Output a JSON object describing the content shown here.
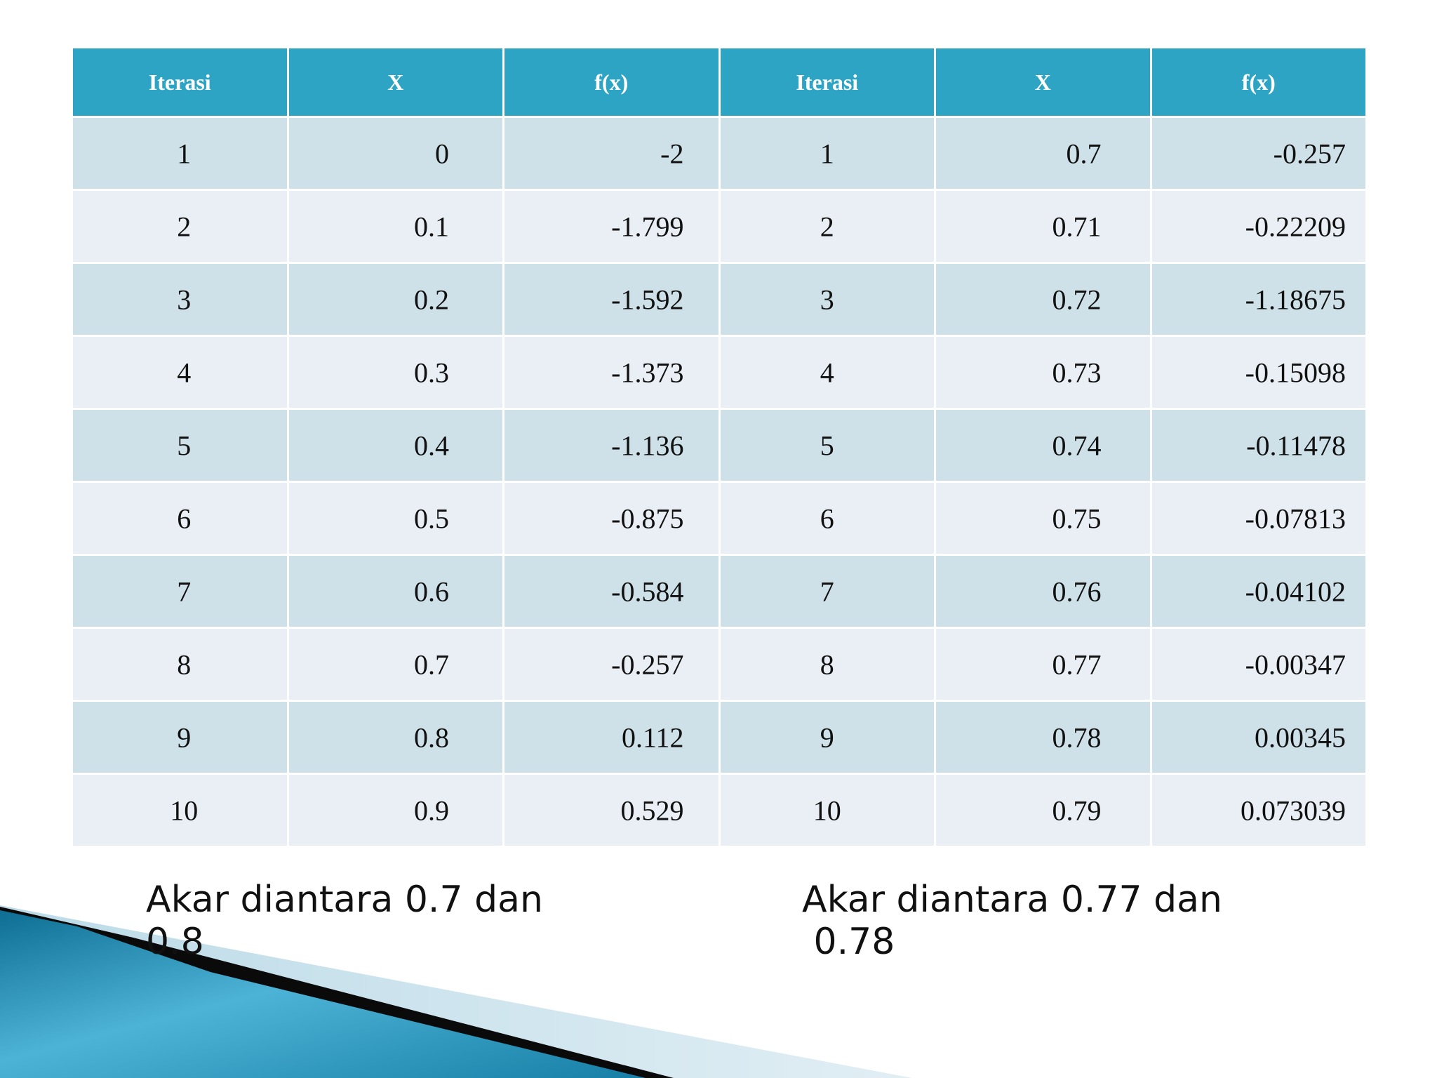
{
  "table": {
    "headers": [
      "Iterasi",
      "X",
      "f(x)",
      "Iterasi",
      "X",
      "f(x)"
    ],
    "rows": [
      [
        "1",
        "0",
        "-2",
        "1",
        "0.7",
        "-0.257"
      ],
      [
        "2",
        "0.1",
        "-1.799",
        "2",
        "0.71",
        "-0.22209"
      ],
      [
        "3",
        "0.2",
        "-1.592",
        "3",
        "0.72",
        "-1.18675"
      ],
      [
        "4",
        "0.3",
        "-1.373",
        "4",
        "0.73",
        "-0.15098"
      ],
      [
        "5",
        "0.4",
        "-1.136",
        "5",
        "0.74",
        "-0.11478"
      ],
      [
        "6",
        "0.5",
        "-0.875",
        "6",
        "0.75",
        "-0.07813"
      ],
      [
        "7",
        "0.6",
        "-0.584",
        "7",
        "0.76",
        "-0.04102"
      ],
      [
        "8",
        "0.7",
        "-0.257",
        "8",
        "0.77",
        "-0.00347"
      ],
      [
        "9",
        "0.8",
        "0.112",
        "9",
        "0.78",
        "0.00345"
      ],
      [
        "10",
        "0.9",
        "0.529",
        "10",
        "0.79",
        "0.073039"
      ]
    ]
  },
  "notes": {
    "left": {
      "line1": "Akar diantara 0.7 dan",
      "line2": "0.8"
    },
    "right": {
      "line1": "Akar diantara 0.77 dan",
      "line2": " 0.78"
    }
  },
  "colors": {
    "header_bg": "#2ea4c5",
    "row_odd": "#cfe1e8",
    "row_even": "#e9eff4"
  }
}
